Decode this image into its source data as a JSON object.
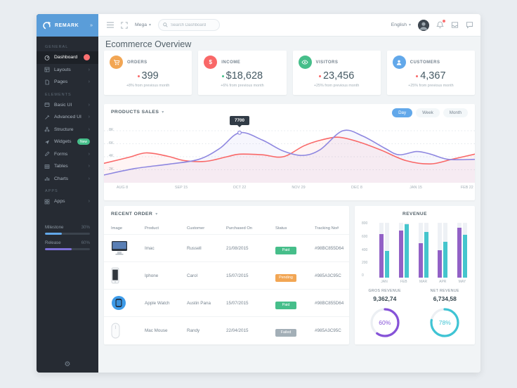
{
  "brand": {
    "name": "REMARK"
  },
  "navbar": {
    "mega": "Mega",
    "search_placeholder": "Search Dashboard",
    "language": "English"
  },
  "sidebar": {
    "sections": {
      "general": "GENERAL",
      "elements": "Elements",
      "apps": "APPS"
    },
    "general_items": [
      {
        "label": "Dashboard"
      },
      {
        "label": "Layouts"
      },
      {
        "label": "Pages"
      }
    ],
    "element_items": [
      {
        "label": "Basic UI"
      },
      {
        "label": "Advanced UI"
      },
      {
        "label": "Structure"
      },
      {
        "label": "Widgets",
        "badge": "New"
      },
      {
        "label": "Forms"
      },
      {
        "label": "Tables"
      },
      {
        "label": "Charts"
      }
    ],
    "app_items": [
      {
        "label": "Apps"
      }
    ],
    "progress": [
      {
        "label": "Milestone",
        "value": "30%"
      },
      {
        "label": "Release",
        "value": "60%"
      }
    ]
  },
  "page": {
    "title": "Ecommerce Overview"
  },
  "stats": [
    {
      "label": "ORDERS",
      "value": "399",
      "note": "+8% from previous month"
    },
    {
      "label": "INCOME",
      "value": "$18,628",
      "note": "+6% from previous month"
    },
    {
      "label": "VISITORS",
      "value": "23,456",
      "note": "+25% from previous month"
    },
    {
      "label": "CUSTOMERS",
      "value": "4,367",
      "note": "+25% from previous month"
    }
  ],
  "products_sales": {
    "title": "PRODUCTS SALES",
    "ranges": [
      "Day",
      "Week",
      "Month"
    ],
    "active_range": "Day",
    "tooltip_value": "7700",
    "y_ticks": [
      "8K",
      "6K",
      "4K",
      "2K"
    ],
    "x_ticks": [
      "AUG 8",
      "SEP 15",
      "OCT 22",
      "NOV 29",
      "DEC 8",
      "JAN 15",
      "FEB 22"
    ]
  },
  "recent_order": {
    "title": "RECENT ORDER",
    "columns": [
      "Image",
      "Product",
      "Customer",
      "Purchased On",
      "Status",
      "Tracking No#"
    ],
    "rows": [
      {
        "product": "Imac",
        "customer": "Russell",
        "purchased_on": "21/08/2015",
        "status": "Paid",
        "tracking": "#98BC855D64"
      },
      {
        "product": "Iphone",
        "customer": "Carol",
        "purchased_on": "15/07/2015",
        "status": "Pending",
        "tracking": "#985A3C95C"
      },
      {
        "product": "Apple Watch",
        "customer": "Austin Pana",
        "purchased_on": "15/07/2015",
        "status": "Paid",
        "tracking": "#98BC855D64"
      },
      {
        "product": "Mac Mouse",
        "customer": "Randy",
        "purchased_on": "22/04/2015",
        "status": "Failed",
        "tracking": "#985A3C95C"
      }
    ]
  },
  "revenue": {
    "title": "REVENUE",
    "y_ticks": [
      "800",
      "600",
      "400",
      "200",
      "0"
    ],
    "gross": {
      "label": "GROS REVENUE",
      "value": "9,362,74",
      "percent": "60%"
    },
    "net": {
      "label": "NET REVENUE",
      "value": "6,734,58",
      "percent": "78%"
    }
  },
  "colors": {
    "primary": "#62a8ea",
    "sidebar": "#262b33",
    "orders": "#f2a654",
    "income": "#f96868",
    "visitors": "#46be8a",
    "customers": "#62a8ea",
    "line_purple": "#8e87e0",
    "line_red": "#f96868",
    "bar_purple": "#9261c6",
    "bar_teal": "#45c5cd",
    "paid": "#46be8a",
    "pending": "#f2a654",
    "failed": "#a3afb7"
  },
  "icons": {
    "menu": "hamburger",
    "expand": "fullscreen",
    "search": "magnifier",
    "bell": "notifications",
    "inbox": "messages",
    "chat": "comments",
    "gear": "settings"
  },
  "chart_data": [
    {
      "type": "line",
      "title": "PRODUCTS SALES",
      "x": [
        "AUG 8",
        "SEP 15",
        "OCT 22",
        "NOV 29",
        "DEC 8",
        "JAN 15",
        "FEB 22"
      ],
      "series": [
        {
          "name": "purple",
          "color": "#8e87e0",
          "values": [
            1500,
            3100,
            7700,
            4300,
            7400,
            5000,
            3700
          ],
          "samples": [
            [
              0,
              1200
            ],
            [
              45,
              2200
            ],
            [
              95,
              2900
            ],
            [
              135,
              3600
            ],
            [
              165,
              5300
            ],
            [
              193,
              7700
            ],
            [
              225,
              6600
            ],
            [
              255,
              4900
            ],
            [
              283,
              4200
            ],
            [
              308,
              5100
            ],
            [
              340,
              8000
            ],
            [
              368,
              7200
            ],
            [
              400,
              5300
            ],
            [
              420,
              4300
            ],
            [
              445,
              4800
            ],
            [
              465,
              4400
            ],
            [
              490,
              3600
            ],
            [
              528,
              3600
            ]
          ]
        },
        {
          "name": "red",
          "color": "#f96868",
          "values": [
            3300,
            3500,
            4500,
            6500,
            5600,
            2900,
            4500
          ],
          "samples": [
            [
              0,
              3000
            ],
            [
              35,
              3900
            ],
            [
              60,
              4600
            ],
            [
              90,
              4100
            ],
            [
              115,
              3400
            ],
            [
              145,
              3300
            ],
            [
              175,
              4000
            ],
            [
              193,
              4400
            ],
            [
              225,
              4300
            ],
            [
              255,
              4000
            ],
            [
              285,
              5700
            ],
            [
              310,
              6600
            ],
            [
              335,
              7000
            ],
            [
              365,
              6200
            ],
            [
              395,
              5000
            ],
            [
              430,
              3400
            ],
            [
              465,
              2900
            ],
            [
              495,
              3600
            ],
            [
              528,
              4400
            ]
          ]
        }
      ],
      "ylim": [
        0,
        8000
      ],
      "y_ticks": [
        2000,
        4000,
        6000,
        8000
      ],
      "tooltip": {
        "x": "OCT 22",
        "value": 7700
      },
      "legend": "none",
      "grid": "dashed-horizontal"
    },
    {
      "type": "bar",
      "title": "REVENUE",
      "categories": [
        "JAN",
        "FEB",
        "MAR",
        "APR",
        "MAY"
      ],
      "series": [
        {
          "name": "purple",
          "color": "#9261c6",
          "values": [
            680,
            730,
            530,
            430,
            770
          ]
        },
        {
          "name": "teal",
          "color": "#45c5cd",
          "values": [
            410,
            830,
            710,
            560,
            670
          ]
        }
      ],
      "ylim": [
        0,
        850
      ],
      "y_ticks": [
        0,
        200,
        400,
        600,
        800
      ],
      "legend": "none"
    },
    {
      "type": "donut",
      "items": [
        {
          "label": "GROS REVENUE",
          "value": "9,362,74",
          "percent": 60,
          "color": "#8652d8"
        },
        {
          "label": "NET REVENUE",
          "value": "6,734,58",
          "percent": 78,
          "color": "#3fc4d4"
        }
      ]
    }
  ]
}
